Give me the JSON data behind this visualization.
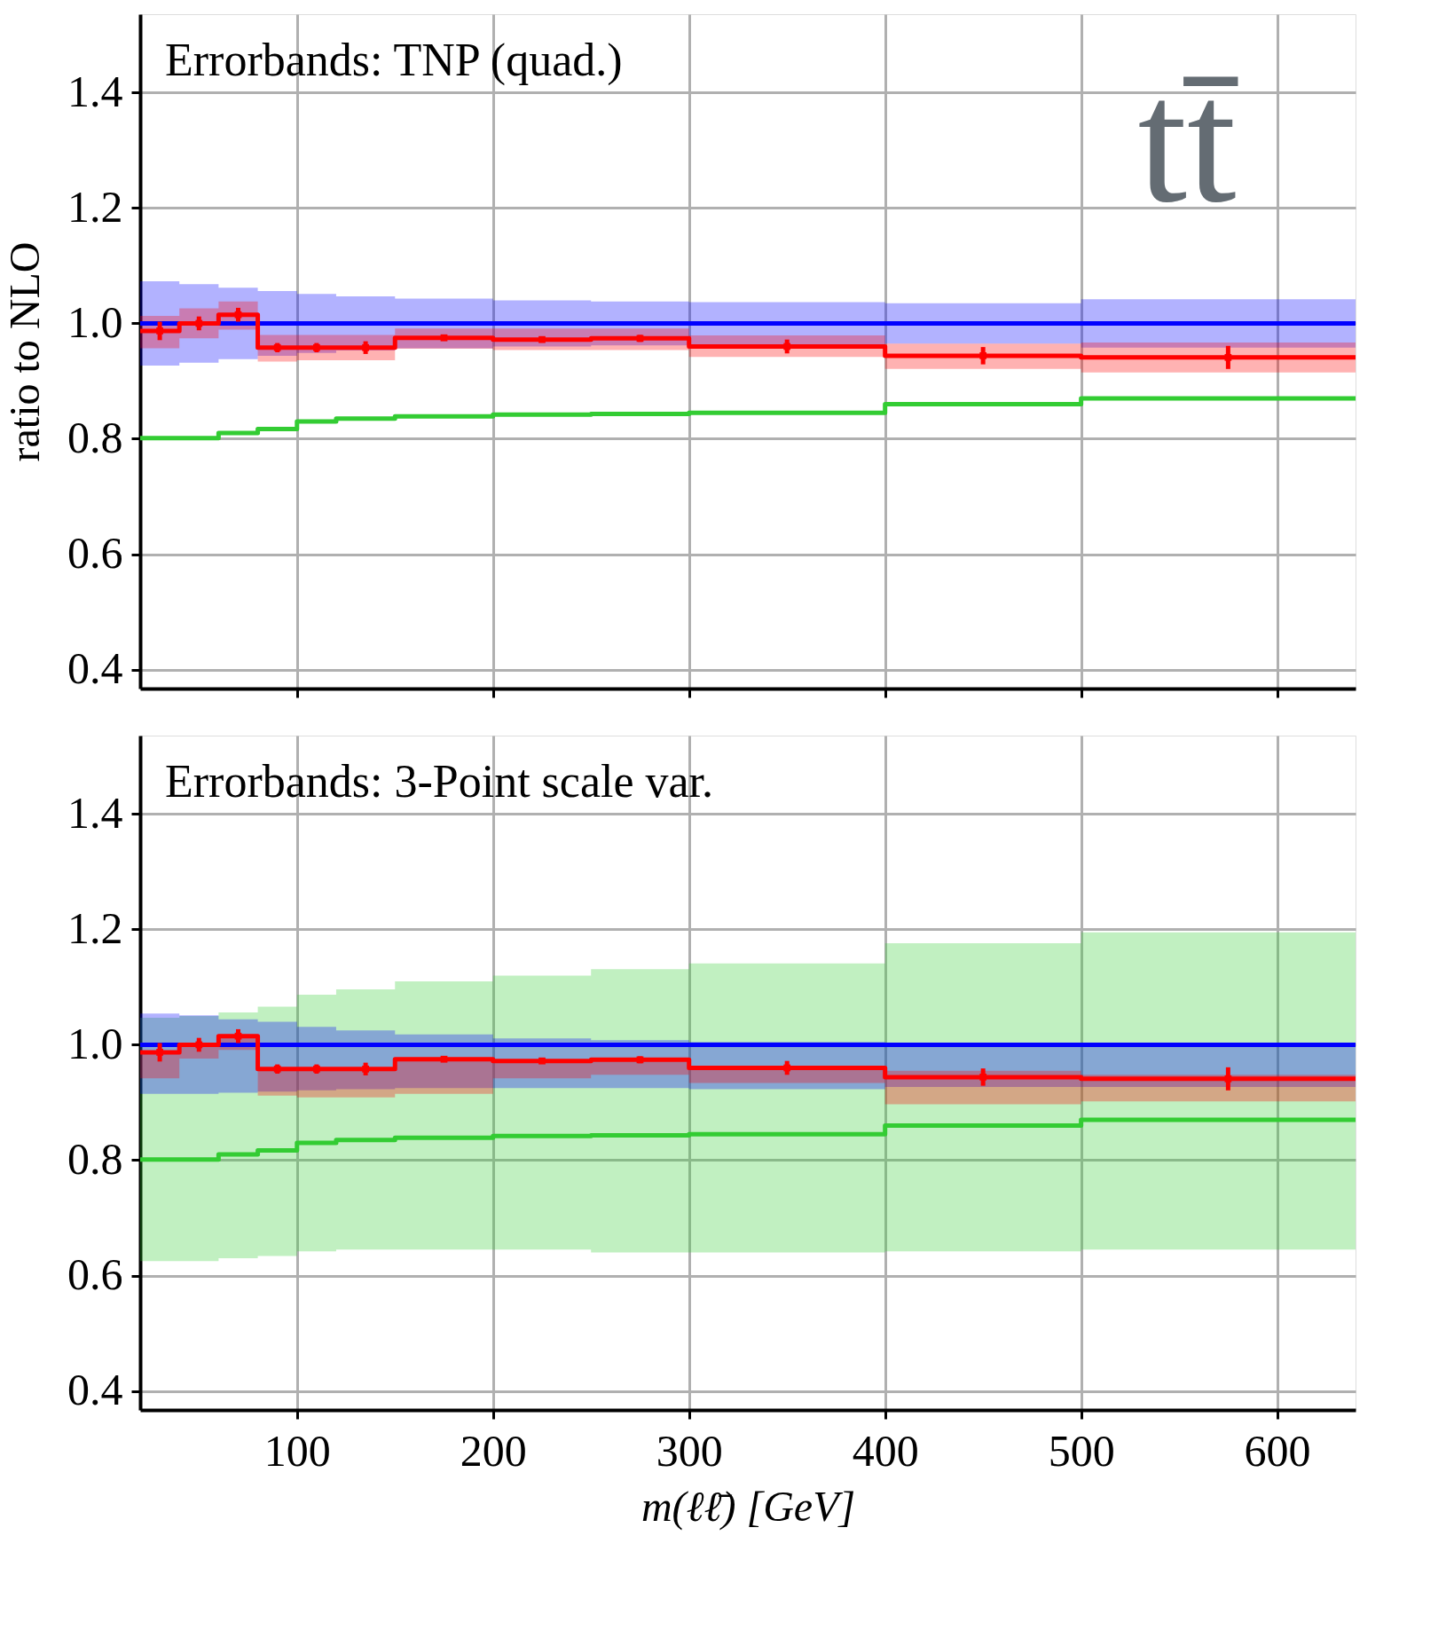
{
  "chart_data": [
    {
      "type": "step",
      "ylabel": "ratio to NLO",
      "annotations": [
        "Errorbands: TNP (quad.)",
        "tt̄"
      ],
      "x": [
        20,
        40,
        60,
        80,
        100,
        120,
        150,
        200,
        250,
        300,
        400,
        500,
        640
      ],
      "xlim": [
        20,
        640
      ],
      "xticks": [
        100,
        200,
        300,
        400,
        500,
        600
      ],
      "ylim": [
        0.367,
        1.536
      ],
      "yticks": [
        {
          "value": 0.4,
          "label": "0.4"
        },
        {
          "value": 0.6,
          "label": "0.6"
        },
        {
          "value": 0.8,
          "label": "0.8"
        },
        {
          "value": 1.0,
          "label": "1.0"
        },
        {
          "value": 1.2,
          "label": "1.2"
        },
        {
          "value": 1.4,
          "label": "1.4"
        }
      ],
      "grid": true,
      "tick_labels": "y",
      "line_style": "solid",
      "series": [
        {
          "color": "#33cc33",
          "values": [
            0.801,
            0.801,
            0.81,
            0.817,
            0.83,
            0.835,
            0.839,
            0.842,
            0.843,
            0.845,
            0.86,
            0.87,
            0.87
          ]
        },
        {
          "color": "#0000ff",
          "values": [
            1.0,
            1.0,
            1.0,
            1.0,
            1.0,
            1.0,
            1.0,
            1.0,
            1.0,
            1.0,
            1.0,
            1.0,
            1.0
          ],
          "upper": [
            1.073,
            1.068,
            1.062,
            1.056,
            1.051,
            1.047,
            1.043,
            1.04,
            1.038,
            1.037,
            1.035,
            1.042,
            1.042
          ],
          "lower": [
            0.927,
            0.932,
            0.938,
            0.944,
            0.949,
            0.953,
            0.957,
            0.96,
            0.962,
            0.963,
            0.965,
            0.958,
            0.958
          ]
        },
        {
          "color": "#ff0000",
          "values": [
            0.987,
            1.0,
            1.015,
            0.958,
            0.958,
            0.958,
            0.975,
            0.972,
            0.974,
            0.96,
            0.944,
            0.941,
            0.941
          ],
          "upper": [
            1.013,
            1.026,
            1.038,
            0.98,
            0.98,
            0.98,
            0.991,
            0.991,
            0.991,
            0.979,
            0.965,
            0.967,
            0.967
          ],
          "lower": [
            0.957,
            0.974,
            0.989,
            0.934,
            0.936,
            0.936,
            0.956,
            0.954,
            0.954,
            0.942,
            0.921,
            0.915,
            0.915
          ]
        },
        {
          "type": "scatter",
          "marker": "square",
          "color": "#ff0000",
          "x": [
            30,
            50,
            70,
            90,
            110,
            135,
            175,
            225,
            275,
            350,
            450,
            575
          ],
          "values": [
            0.987,
            1.0,
            1.015,
            0.958,
            0.958,
            0.958,
            0.975,
            0.972,
            0.974,
            0.96,
            0.944,
            0.941
          ],
          "errors": [
            0.016,
            0.012,
            0.012,
            0.008,
            0.008,
            0.011,
            0.005,
            0.005,
            0.006,
            0.012,
            0.015,
            0.02
          ]
        }
      ]
    },
    {
      "type": "step",
      "xlabel": "m(ℓℓ̄) [GeV]",
      "annotations": [
        "Errorbands: 3-Point scale var."
      ],
      "x": [
        20,
        40,
        60,
        80,
        100,
        120,
        150,
        200,
        250,
        300,
        400,
        500,
        640
      ],
      "xlim": [
        20,
        640
      ],
      "xticks": [
        100,
        200,
        300,
        400,
        500,
        600
      ],
      "ylim": [
        0.367,
        1.536
      ],
      "yticks": [
        {
          "value": 0.4,
          "label": "0.4"
        },
        {
          "value": 0.6,
          "label": "0.6"
        },
        {
          "value": 0.8,
          "label": "0.8"
        },
        {
          "value": 1.0,
          "label": "1.0"
        },
        {
          "value": 1.2,
          "label": "1.2"
        },
        {
          "value": 1.4,
          "label": "1.4"
        }
      ],
      "grid": true,
      "line_style": "solid",
      "series": [
        {
          "color": "#33cc33",
          "values": [
            0.801,
            0.801,
            0.81,
            0.817,
            0.83,
            0.835,
            0.839,
            0.842,
            0.843,
            0.845,
            0.86,
            0.87,
            0.87
          ],
          "upper": [
            1.047,
            1.05,
            1.056,
            1.066,
            1.087,
            1.096,
            1.11,
            1.12,
            1.131,
            1.141,
            1.176,
            1.195,
            1.195
          ],
          "lower": [
            0.625,
            0.625,
            0.63,
            0.634,
            0.642,
            0.645,
            0.645,
            0.645,
            0.64,
            0.64,
            0.642,
            0.645,
            0.645
          ]
        },
        {
          "color": "#0000ff",
          "values": [
            1.0,
            1.0,
            1.0,
            1.0,
            1.0,
            1.0,
            1.0,
            1.0,
            1.0,
            1.0,
            1.0,
            1.0,
            1.0
          ],
          "upper": [
            1.054,
            1.051,
            1.044,
            1.04,
            1.031,
            1.025,
            1.018,
            1.011,
            1.008,
            1.005,
            1.0,
            1.0,
            1.0
          ],
          "lower": [
            0.915,
            0.915,
            0.917,
            0.919,
            0.921,
            0.923,
            0.925,
            0.925,
            0.925,
            0.923,
            0.927,
            0.927,
            0.927
          ]
        },
        {
          "color": "#ff0000",
          "values": [
            0.987,
            1.0,
            1.015,
            0.958,
            0.958,
            0.958,
            0.975,
            0.972,
            0.974,
            0.96,
            0.944,
            0.941,
            0.941
          ],
          "upper": [
            0.988,
            1.0,
            1.018,
            0.958,
            0.958,
            0.958,
            0.975,
            0.972,
            0.974,
            0.962,
            0.955,
            0.948,
            0.948
          ],
          "lower": [
            0.942,
            0.976,
            0.991,
            0.912,
            0.909,
            0.909,
            0.915,
            0.942,
            0.948,
            0.934,
            0.897,
            0.902,
            0.902
          ]
        },
        {
          "type": "scatter",
          "marker": "square",
          "color": "#ff0000",
          "x": [
            30,
            50,
            70,
            90,
            110,
            135,
            175,
            225,
            275,
            350,
            450,
            575
          ],
          "values": [
            0.987,
            1.0,
            1.015,
            0.958,
            0.958,
            0.958,
            0.975,
            0.972,
            0.974,
            0.96,
            0.944,
            0.941
          ],
          "errors": [
            0.016,
            0.012,
            0.012,
            0.008,
            0.008,
            0.011,
            0.005,
            0.005,
            0.006,
            0.012,
            0.015,
            0.02
          ]
        }
      ]
    }
  ]
}
